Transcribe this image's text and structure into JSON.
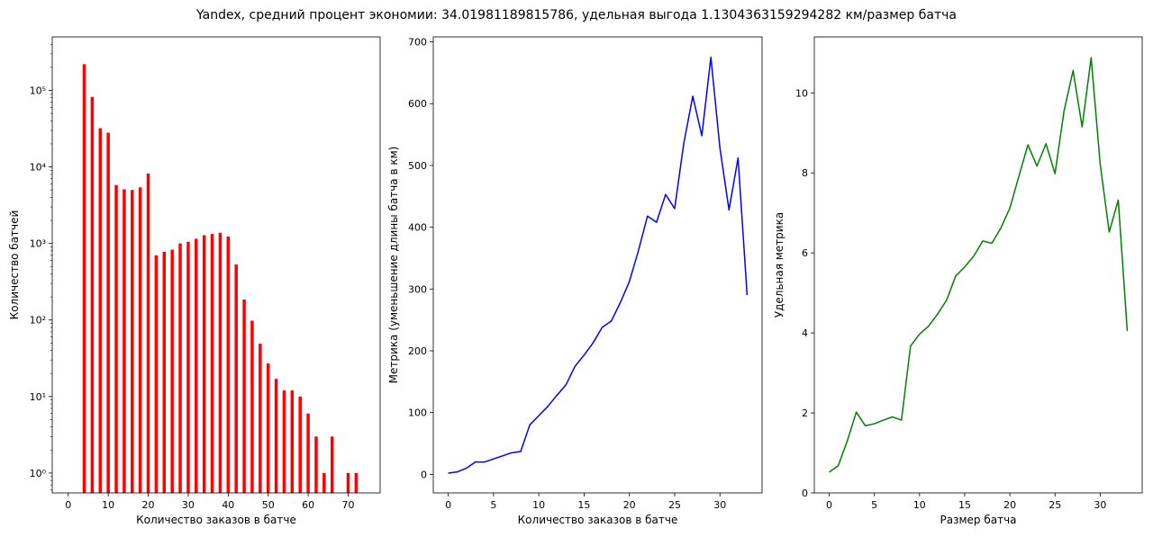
{
  "title": "Yandex, средний процент экономии: 34.01981189815786, удельная выгода 1.1304363159294282 км/размер батча",
  "chart_data": [
    {
      "type": "bar",
      "xlabel": "Количество заказов в батче",
      "ylabel": "Количество батчей",
      "yscale": "log",
      "xlim": [
        -4,
        78
      ],
      "ylim": [
        0.55,
        500000
      ],
      "xticks": [
        0,
        10,
        20,
        30,
        40,
        50,
        60,
        70
      ],
      "yticks": [
        {
          "value": 1,
          "label": "10⁰"
        },
        {
          "value": 10,
          "label": "10¹"
        },
        {
          "value": 100,
          "label": "10²"
        },
        {
          "value": 1000,
          "label": "10³"
        },
        {
          "value": 10000,
          "label": "10⁴"
        },
        {
          "value": 100000,
          "label": "10⁵"
        }
      ],
      "color": "#ff0000",
      "x": [
        4,
        6,
        8,
        10,
        12,
        14,
        16,
        18,
        20,
        22,
        24,
        26,
        28,
        30,
        32,
        34,
        36,
        38,
        40,
        42,
        44,
        46,
        48,
        50,
        52,
        54,
        56,
        58,
        60,
        62,
        64,
        66,
        70,
        72
      ],
      "values": [
        220000,
        82000,
        32000,
        28000,
        5800,
        5100,
        5000,
        5400,
        8200,
        700,
        780,
        830,
        1000,
        1050,
        1150,
        1280,
        1330,
        1380,
        1230,
        530,
        185,
        98,
        49,
        27,
        17,
        12,
        12,
        10,
        6,
        3,
        1,
        3,
        1,
        1
      ]
    },
    {
      "type": "line",
      "xlabel": "Количество заказов в батче",
      "ylabel": "Метрика (уменьшение длины батча в км)",
      "xlim": [
        -1.65,
        34.65
      ],
      "ylim": [
        -30,
        708
      ],
      "xticks": [
        0,
        5,
        10,
        15,
        20,
        25,
        30
      ],
      "yticks": [
        0,
        100,
        200,
        300,
        400,
        500,
        600,
        700
      ],
      "color": "#0000ff",
      "series": [
        {
          "x": [
            0,
            1,
            2,
            3,
            4,
            5,
            6,
            7,
            8,
            9,
            10,
            11,
            12,
            13,
            14,
            15,
            16,
            17,
            18,
            19,
            20,
            21,
            22,
            23,
            24,
            25,
            26,
            27,
            28,
            29,
            30,
            31,
            32,
            33
          ],
          "values": [
            2,
            4,
            10,
            20,
            20,
            25,
            30,
            35,
            37,
            80,
            95,
            110,
            128,
            145,
            175,
            193,
            213,
            238,
            248,
            278,
            312,
            362,
            418,
            408,
            453,
            430,
            535,
            612,
            548,
            675,
            528,
            428,
            512,
            290
          ]
        }
      ]
    },
    {
      "type": "line",
      "xlabel": "Размер батча",
      "ylabel": "Удельная метрика",
      "xlim": [
        -1.65,
        34.65
      ],
      "ylim": [
        0,
        11.4
      ],
      "xticks": [
        0,
        5,
        10,
        15,
        20,
        25,
        30
      ],
      "yticks": [
        0,
        2,
        4,
        6,
        8,
        10
      ],
      "color": "#008000",
      "series": [
        {
          "x": [
            0,
            1,
            2,
            3,
            4,
            5,
            6,
            7,
            8,
            9,
            10,
            11,
            12,
            13,
            14,
            15,
            16,
            17,
            18,
            19,
            20,
            21,
            22,
            23,
            24,
            25,
            26,
            27,
            28,
            29,
            30,
            31,
            32,
            33
          ],
          "values": [
            0.52,
            0.68,
            1.3,
            2.02,
            1.68,
            1.73,
            1.82,
            1.9,
            1.82,
            3.67,
            3.97,
            4.17,
            4.47,
            4.82,
            5.42,
            5.65,
            5.92,
            6.3,
            6.24,
            6.62,
            7.12,
            7.92,
            8.7,
            8.17,
            8.73,
            7.98,
            9.55,
            10.56,
            9.15,
            10.88,
            8.22,
            6.52,
            7.32,
            4.05
          ]
        }
      ]
    }
  ]
}
